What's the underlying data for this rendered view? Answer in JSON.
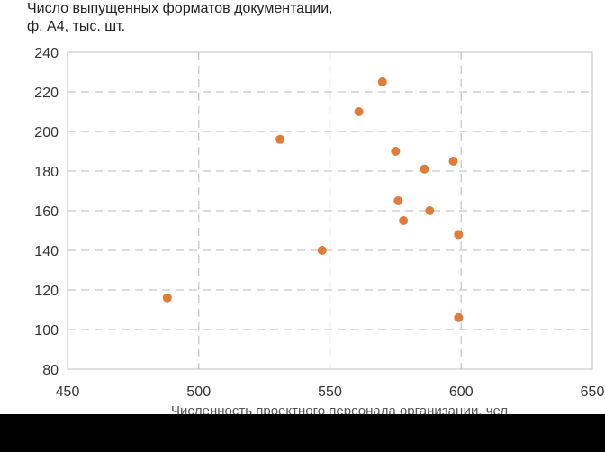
{
  "chart_data": {
    "type": "scatter",
    "ylabel_lines": [
      "Число выпущенных форматов документации,",
      "ф. А4, тыс. шт."
    ],
    "xlabel": "Численность проектного персонала организации, чел.",
    "xlim": [
      450,
      650
    ],
    "ylim": [
      80,
      240
    ],
    "xticks": [
      450,
      500,
      550,
      600,
      650
    ],
    "yticks": [
      80,
      100,
      120,
      140,
      160,
      180,
      200,
      220,
      240
    ],
    "grid": true,
    "marker_color": "#E07B39",
    "points": [
      {
        "x": 488,
        "y": 116
      },
      {
        "x": 531,
        "y": 196
      },
      {
        "x": 547,
        "y": 140
      },
      {
        "x": 561,
        "y": 210
      },
      {
        "x": 570,
        "y": 225
      },
      {
        "x": 575,
        "y": 190
      },
      {
        "x": 576,
        "y": 165
      },
      {
        "x": 578,
        "y": 155
      },
      {
        "x": 586,
        "y": 181
      },
      {
        "x": 588,
        "y": 160
      },
      {
        "x": 597,
        "y": 185
      },
      {
        "x": 599,
        "y": 148
      },
      {
        "x": 599,
        "y": 106
      }
    ]
  }
}
